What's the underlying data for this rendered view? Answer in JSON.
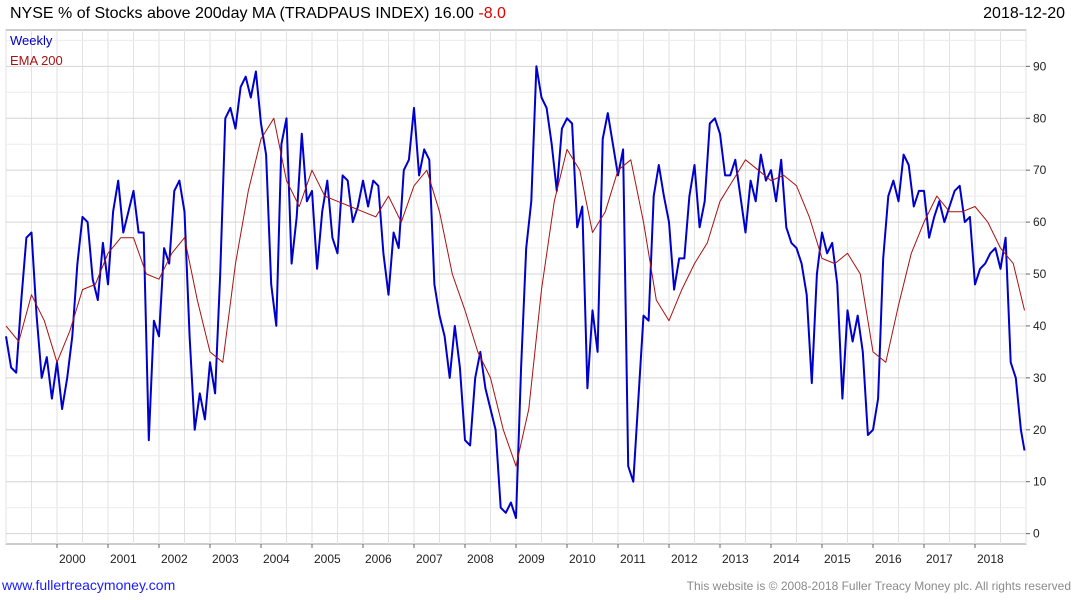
{
  "header": {
    "title": "NYSE % of Stocks above 200day MA (TRADPAUS INDEX)",
    "last_value": "16.00",
    "change": "-8.0",
    "date": "2018-12-20"
  },
  "footer": {
    "link": "www.fullertreacymoney.com",
    "copyright": "This website is © 2008-2018 Fuller Treacy Money plc. All rights reserved"
  },
  "colors": {
    "weekly": "#0000cc",
    "ema": "#aa1111",
    "grid": "#d8d8d8",
    "change": "#e00000"
  },
  "chart_data": {
    "type": "line",
    "title": "NYSE % of Stocks above 200day MA (TRADPAUS INDEX)",
    "xlabel": "",
    "ylabel": "",
    "xlim": [
      1999.0,
      2019.0
    ],
    "ylim": [
      -2,
      97
    ],
    "yticks": [
      0,
      10,
      20,
      30,
      40,
      50,
      60,
      70,
      80,
      90
    ],
    "xticks": [
      "2000",
      "2001",
      "2002",
      "2003",
      "2004",
      "2005",
      "2006",
      "2007",
      "2008",
      "2009",
      "2010",
      "2011",
      "2012",
      "2013",
      "2014",
      "2015",
      "2016",
      "2017",
      "2018"
    ],
    "grid": true,
    "legend": "top-left",
    "series": [
      {
        "name": "Weekly",
        "color": "#0000cc",
        "x": [
          1999.0,
          1999.1,
          1999.2,
          1999.3,
          1999.4,
          1999.5,
          1999.6,
          1999.7,
          1999.8,
          1999.9,
          2000.0,
          2000.1,
          2000.2,
          2000.3,
          2000.4,
          2000.5,
          2000.6,
          2000.7,
          2000.8,
          2000.9,
          2001.0,
          2001.1,
          2001.2,
          2001.3,
          2001.4,
          2001.5,
          2001.6,
          2001.7,
          2001.8,
          2001.9,
          2002.0,
          2002.1,
          2002.2,
          2002.3,
          2002.4,
          2002.5,
          2002.6,
          2002.7,
          2002.8,
          2002.9,
          2003.0,
          2003.1,
          2003.2,
          2003.3,
          2003.4,
          2003.5,
          2003.6,
          2003.7,
          2003.8,
          2003.9,
          2004.0,
          2004.1,
          2004.2,
          2004.3,
          2004.4,
          2004.5,
          2004.6,
          2004.7,
          2004.8,
          2004.9,
          2005.0,
          2005.1,
          2005.2,
          2005.3,
          2005.4,
          2005.5,
          2005.6,
          2005.7,
          2005.8,
          2005.9,
          2006.0,
          2006.1,
          2006.2,
          2006.3,
          2006.4,
          2006.5,
          2006.6,
          2006.7,
          2006.8,
          2006.9,
          2007.0,
          2007.1,
          2007.2,
          2007.3,
          2007.4,
          2007.5,
          2007.6,
          2007.7,
          2007.8,
          2007.9,
          2008.0,
          2008.1,
          2008.2,
          2008.3,
          2008.4,
          2008.5,
          2008.6,
          2008.7,
          2008.8,
          2008.9,
          2009.0,
          2009.1,
          2009.2,
          2009.3,
          2009.4,
          2009.5,
          2009.6,
          2009.7,
          2009.8,
          2009.9,
          2010.0,
          2010.1,
          2010.2,
          2010.3,
          2010.4,
          2010.5,
          2010.6,
          2010.7,
          2010.8,
          2010.9,
          2011.0,
          2011.1,
          2011.2,
          2011.3,
          2011.4,
          2011.5,
          2011.6,
          2011.7,
          2011.8,
          2011.9,
          2012.0,
          2012.1,
          2012.2,
          2012.3,
          2012.4,
          2012.5,
          2012.6,
          2012.7,
          2012.8,
          2012.9,
          2013.0,
          2013.1,
          2013.2,
          2013.3,
          2013.4,
          2013.5,
          2013.6,
          2013.7,
          2013.8,
          2013.9,
          2014.0,
          2014.1,
          2014.2,
          2014.3,
          2014.4,
          2014.5,
          2014.6,
          2014.7,
          2014.8,
          2014.9,
          2015.0,
          2015.1,
          2015.2,
          2015.3,
          2015.4,
          2015.5,
          2015.6,
          2015.7,
          2015.8,
          2015.9,
          2016.0,
          2016.1,
          2016.2,
          2016.3,
          2016.4,
          2016.5,
          2016.6,
          2016.7,
          2016.8,
          2016.9,
          2017.0,
          2017.1,
          2017.2,
          2017.3,
          2017.4,
          2017.5,
          2017.6,
          2017.7,
          2017.8,
          2017.9,
          2018.0,
          2018.1,
          2018.2,
          2018.3,
          2018.4,
          2018.5,
          2018.6,
          2018.7,
          2018.8,
          2018.9,
          2018.97
        ],
        "y": [
          38,
          32,
          31,
          45,
          57,
          58,
          42,
          30,
          34,
          26,
          33,
          24,
          30,
          38,
          52,
          61,
          60,
          49,
          45,
          56,
          48,
          62,
          68,
          58,
          62,
          66,
          58,
          58,
          18,
          41,
          38,
          55,
          52,
          66,
          68,
          62,
          38,
          20,
          27,
          22,
          33,
          27,
          50,
          80,
          82,
          78,
          86,
          88,
          84,
          89,
          79,
          73,
          48,
          40,
          75,
          80,
          52,
          61,
          77,
          64,
          66,
          51,
          62,
          68,
          57,
          54,
          69,
          68,
          60,
          63,
          68,
          63,
          68,
          67,
          54,
          46,
          58,
          55,
          70,
          72,
          82,
          69,
          74,
          72,
          48,
          42,
          38,
          30,
          40,
          32,
          18,
          17,
          30,
          35,
          28,
          24,
          20,
          5,
          4,
          6,
          3,
          32,
          55,
          64,
          90,
          84,
          82,
          75,
          66,
          78,
          80,
          79,
          59,
          63,
          28,
          43,
          35,
          76,
          81,
          75,
          69,
          74,
          13,
          10,
          26,
          42,
          41,
          65,
          71,
          65,
          60,
          47,
          53,
          53,
          65,
          71,
          59,
          64,
          79,
          80,
          77,
          69,
          69,
          72,
          65,
          58,
          68,
          64,
          73,
          68,
          70,
          64,
          72,
          59,
          56,
          55,
          52,
          46,
          29,
          50,
          58,
          54,
          56,
          48,
          26,
          43,
          37,
          42,
          35,
          19,
          20,
          26,
          53,
          65,
          68,
          64,
          73,
          71,
          63,
          66,
          66,
          57,
          61,
          64,
          60,
          63,
          66,
          67,
          60,
          61,
          48,
          51,
          52,
          54,
          55,
          51,
          57,
          33,
          30,
          20,
          16
        ]
      },
      {
        "name": "EMA 200",
        "color": "#aa1111",
        "x": [
          1999.0,
          1999.25,
          1999.5,
          1999.75,
          2000.0,
          2000.25,
          2000.5,
          2000.75,
          2001.0,
          2001.25,
          2001.5,
          2001.75,
          2002.0,
          2002.25,
          2002.5,
          2002.75,
          2003.0,
          2003.25,
          2003.5,
          2003.75,
          2004.0,
          2004.25,
          2004.5,
          2004.75,
          2005.0,
          2005.25,
          2005.5,
          2005.75,
          2006.0,
          2006.25,
          2006.5,
          2006.75,
          2007.0,
          2007.25,
          2007.5,
          2007.75,
          2008.0,
          2008.25,
          2008.5,
          2008.75,
          2009.0,
          2009.25,
          2009.5,
          2009.75,
          2010.0,
          2010.25,
          2010.5,
          2010.75,
          2011.0,
          2011.25,
          2011.5,
          2011.75,
          2012.0,
          2012.25,
          2012.5,
          2012.75,
          2013.0,
          2013.25,
          2013.5,
          2013.75,
          2014.0,
          2014.25,
          2014.5,
          2014.75,
          2015.0,
          2015.25,
          2015.5,
          2015.75,
          2016.0,
          2016.25,
          2016.5,
          2016.75,
          2017.0,
          2017.25,
          2017.5,
          2017.75,
          2018.0,
          2018.25,
          2018.5,
          2018.75,
          2018.97
        ],
        "y": [
          40,
          37,
          46,
          41,
          33,
          39,
          47,
          48,
          54,
          57,
          57,
          50,
          49,
          54,
          57,
          45,
          35,
          33,
          52,
          66,
          76,
          80,
          68,
          63,
          70,
          65,
          64,
          63,
          62,
          61,
          65,
          60,
          67,
          70,
          62,
          50,
          43,
          35,
          30,
          20,
          13,
          24,
          47,
          64,
          74,
          70,
          58,
          62,
          70,
          72,
          60,
          45,
          41,
          47,
          52,
          56,
          64,
          68,
          72,
          70,
          68,
          69,
          67,
          61,
          53,
          52,
          54,
          50,
          35,
          33,
          44,
          54,
          60,
          65,
          62,
          62,
          63,
          60,
          55,
          52,
          43
        ]
      }
    ]
  }
}
